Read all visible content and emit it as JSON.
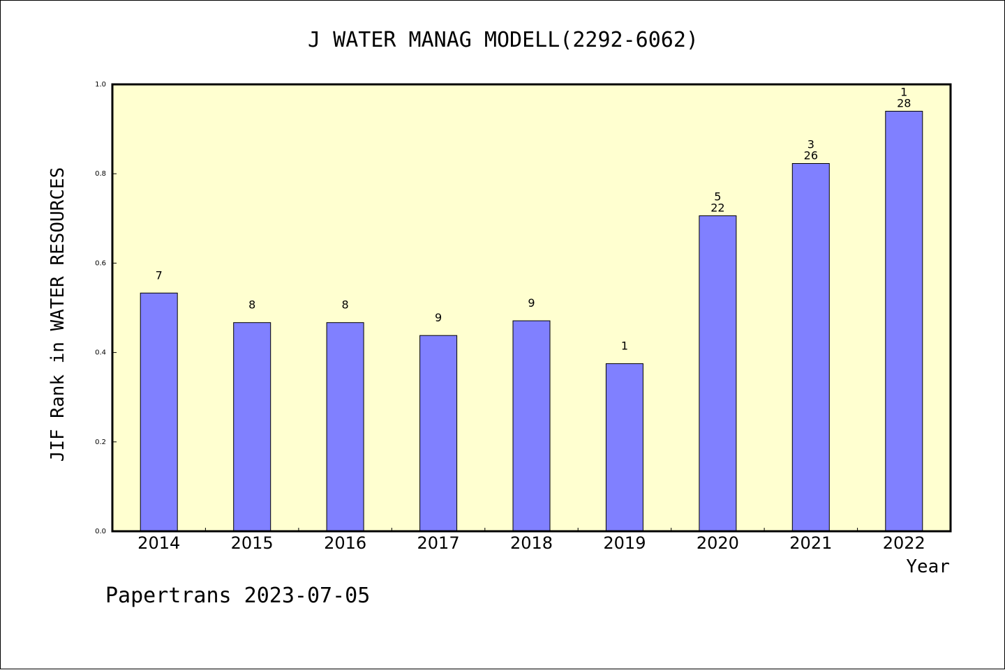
{
  "chart_data": {
    "type": "bar",
    "title": "J WATER MANAG MODELL(2292-6062)",
    "xlabel": "Year",
    "ylabel": "JIF Rank in WATER RESOURCES",
    "categories": [
      "2014",
      "2015",
      "2016",
      "2017",
      "2018",
      "2019",
      "2020",
      "2021",
      "2022"
    ],
    "values": [
      0.533,
      0.467,
      0.467,
      0.438,
      0.471,
      0.375,
      0.706,
      0.823,
      0.94
    ],
    "label_top": [
      "",
      "",
      "",
      "",
      "",
      "",
      "5",
      "3",
      "1"
    ],
    "label_bottom": [
      "7",
      "8",
      "8",
      "9",
      "9",
      "1",
      "22",
      "26",
      "28"
    ],
    "yticks": [
      "0.0",
      "0.2",
      "0.4",
      "0.6",
      "0.8",
      "1.0"
    ],
    "ylim": [
      0,
      1.0
    ],
    "grid": false,
    "colors": {
      "bar": "#8080ff",
      "plot_background": "#ffffd0"
    }
  },
  "footer": "Papertrans 2023-07-05"
}
